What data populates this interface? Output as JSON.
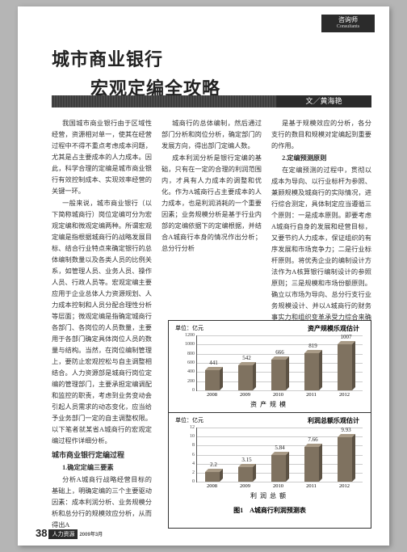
{
  "tab": {
    "zh": "咨询师",
    "en": "Consultants"
  },
  "title": {
    "l1": "城市商业银行",
    "l2": "宏观定编全攻略"
  },
  "byline": "文／黄海艳",
  "col1": {
    "p1": "我国城市商业银行由于区域性经营，资源相对单一，使其在经营过程中不得不重点考虑成本问题，尤其是占主要成本的人力成本。因此，科学合理的定编是城市商业银行有效控制成本、实现效率经营的关键一环。",
    "p2": "一般来说，城市商业银行（以下简称城商行）岗位定编可分为宏观定编和微观定编两种。所谓宏观定编是指根据城商行的战略发展目标、结合行业特点来确定银行的总体编制数量以及各类人员的比例关系，如管理人员、业务人员、操作人员、行政人员等。宏观定编主要应用于企业总体人力资源规划、人力成本控制和人员分配合理性分析等层面；微观定编是指确定城商行各部门、各岗位的人员数量，主要用于各部门确定具体岗位人员的数量与结构。当然，在岗位编制管理上，要防止宏观控松与自主调整相结合。人力资源部是城商行岗位定编的管理部门，主要承担定编调配和监控的职责，考虑到业务变动会引起人员需求的动态变化，应当给予业务部门一定的自主调整权限。以下笔者就某省A城商行的宏观定编过程作详细分析。",
    "h1": "城市商业银行定编过程",
    "sh1": "1.确定定编三要素",
    "p3": "分析A城商行战略经营目标的基础上，明确定编的三个主要驱动因素：成本利润分析、业务规模分析和总分行的规模效应分析，从而得出A"
  },
  "col2": {
    "p1": "城商行的总体编制，然后通过部门分析和岗位分析，确定部门的发展方向，得出部门定编人数。",
    "p2": "成本利润分析是银行定编的基础，只有在一定的合理的利润范围内，才具有人力成本的调整和优化。作为A城商行占主要成本的人力成本，也是利润消耗的一个重要因素；业务规模分析是基于行业内部的定编依据下的定编根据，并结合A城商行本身的情况作出分析；总分行分析",
    "p3": "是基于规模效应的分析，各分支行的数目和规模对定编起到重要的作用。",
    "sh2": "2.定编预测原则",
    "p4": "在定编预测的过程中，贯彻以成本为导向、以行业标杆为参照、兼顾规模及城商行的实际情况，进行综合测定，具体制定应当遵循三个原则：一是成本原则。即要考虑A城商行自身的发展和经营目标，又要节约人力成本，保证组织的有序发展和市场竞争力；二是行业标杆原则。将优秀企业的编制设计方法作为A核算银行编制设计的参照原则；三是规模和市场份额原则。确立以市场为导向、总分行支行业务规模设计、并以A城商行的财务事实力和组织变革承受力综合来确定总编制。",
    "sh3": "3.预测四步走",
    "p5": "第一步　利润成本分析"
  },
  "chart1": {
    "unit": "单位：亿元",
    "title": "资产规模乐观估计",
    "ymax": 1200,
    "ystep": 200,
    "years": [
      "2008",
      "2009",
      "2010",
      "2011",
      "2012"
    ],
    "values": [
      441,
      542,
      666,
      819,
      1007
    ],
    "bar_front": "#7f7260",
    "bar_top": "#a89a86",
    "bar_side": "#5c5244",
    "axis_title": "资产规模"
  },
  "chart2": {
    "unit": "单位：亿元",
    "title": "利润总额乐观估计",
    "ymax": 12,
    "ystep": 2,
    "years": [
      "2008",
      "2009",
      "2010",
      "2011",
      "2012"
    ],
    "values": [
      2.2,
      3.15,
      5.84,
      7.66,
      9.93
    ],
    "bar_front": "#7f7260",
    "bar_top": "#a89a86",
    "bar_side": "#5c5244",
    "axis_title": "利润总额"
  },
  "figure_caption": "图1　A城商行利润预测表",
  "footer": {
    "page": "38",
    "mag": "人力资源",
    "sub": "2009年3月"
  }
}
